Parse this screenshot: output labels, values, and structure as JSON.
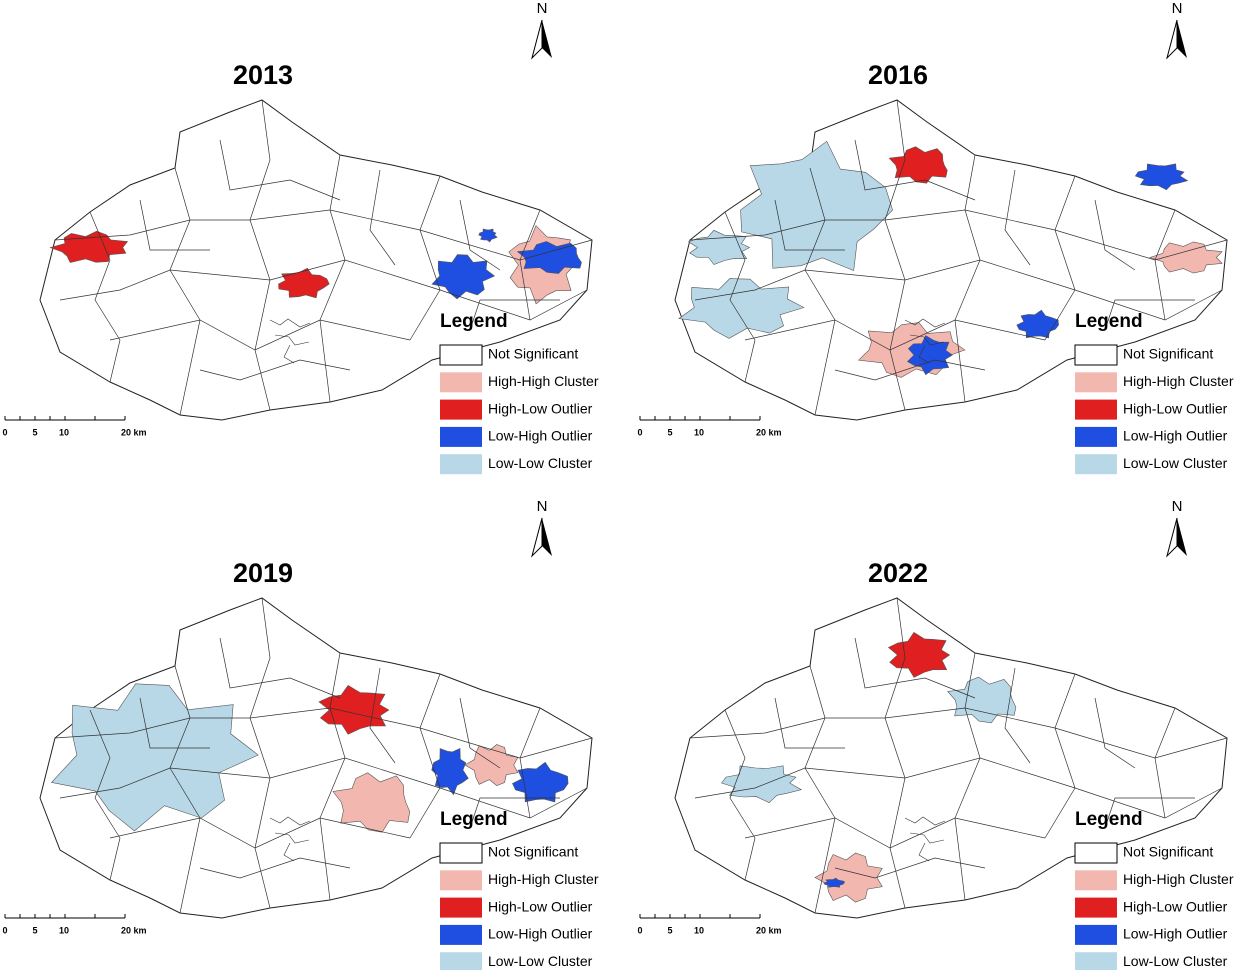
{
  "panels": [
    {
      "title": "2013",
      "north": "N",
      "legend": {
        "title": "Legend",
        "items": [
          {
            "label": "Not Significant",
            "color": "#ffffff"
          },
          {
            "label": "High-High Cluster",
            "color": "#f2b8b0"
          },
          {
            "label": "High-Low Outlier",
            "color": "#e02020"
          },
          {
            "label": "Low-High Outlier",
            "color": "#1f4fe0"
          },
          {
            "label": "Low-Low Cluster",
            "color": "#b8d8e8"
          }
        ]
      },
      "scale_bar": [
        "0",
        "5",
        "10",
        "20 km"
      ]
    },
    {
      "title": "2016",
      "north": "N",
      "legend": {
        "title": "Legend",
        "items": [
          {
            "label": "Not Significant",
            "color": "#ffffff"
          },
          {
            "label": "High-High Cluster",
            "color": "#f2b8b0"
          },
          {
            "label": "High-Low Outlier",
            "color": "#e02020"
          },
          {
            "label": "Low-High Outlier",
            "color": "#1f4fe0"
          },
          {
            "label": "Low-Low Cluster",
            "color": "#b8d8e8"
          }
        ]
      },
      "scale_bar": [
        "0",
        "5",
        "10",
        "20 km"
      ]
    },
    {
      "title": "2019",
      "north": "N",
      "legend": {
        "title": "Legend",
        "items": [
          {
            "label": "Not Significant",
            "color": "#ffffff"
          },
          {
            "label": "High-High Cluster",
            "color": "#f2b8b0"
          },
          {
            "label": "High-Low Outlier",
            "color": "#e02020"
          },
          {
            "label": "Low-High Outlier",
            "color": "#1f4fe0"
          },
          {
            "label": "Low-Low Cluster",
            "color": "#b8d8e8"
          }
        ]
      },
      "scale_bar": [
        "0",
        "5",
        "10",
        "20 km"
      ]
    },
    {
      "title": "2022",
      "north": "N",
      "legend": {
        "title": "Legend",
        "items": [
          {
            "label": "Not Significant",
            "color": "#ffffff"
          },
          {
            "label": "High-High Cluster",
            "color": "#f2b8b0"
          },
          {
            "label": "High-Low Outlier",
            "color": "#e02020"
          },
          {
            "label": "Low-High Outlier",
            "color": "#1f4fe0"
          },
          {
            "label": "Low-Low Cluster",
            "color": "#b8d8e8"
          }
        ]
      },
      "scale_bar": [
        "0",
        "5",
        "10",
        "20 km"
      ]
    }
  ]
}
